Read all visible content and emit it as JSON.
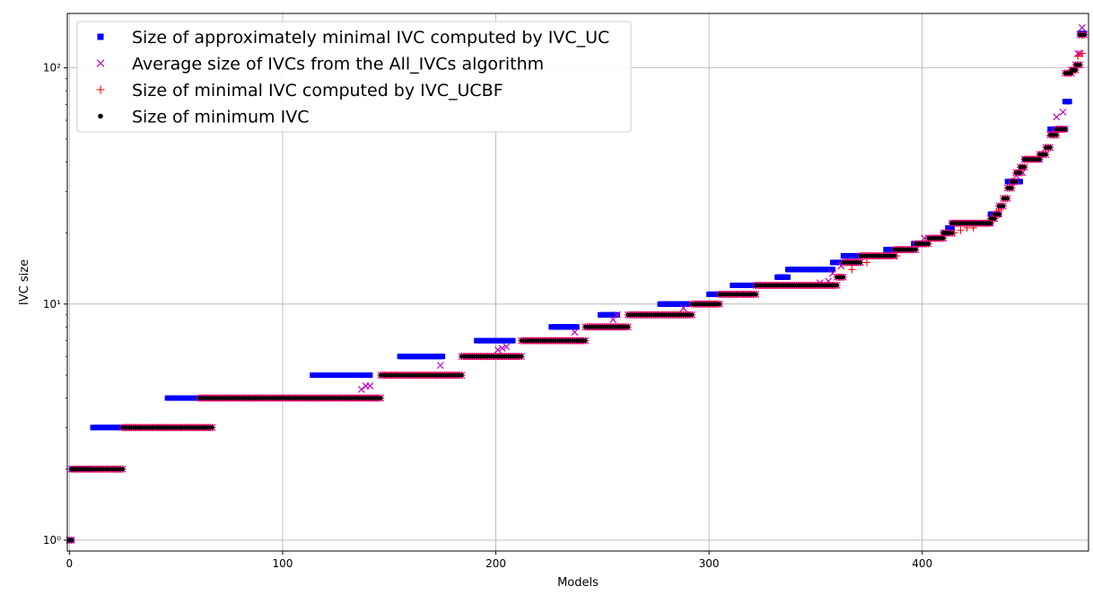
{
  "chart_data": {
    "type": "scatter",
    "title": "",
    "xlabel": "Models",
    "ylabel": "IVC size",
    "xlim": [
      -1,
      478
    ],
    "ylim": [
      0.9,
      170
    ],
    "yscale": "log",
    "grid": true,
    "legend_position": "top-left",
    "x_ticks": [
      0,
      100,
      200,
      300,
      400
    ],
    "x_tick_labels": [
      "0",
      "100",
      "200",
      "300",
      "400"
    ],
    "y_ticks": [
      1,
      10,
      100
    ],
    "y_tick_labels": [
      "10⁰",
      "10¹",
      "10²"
    ],
    "legend": [
      {
        "label": "Size of approximately minimal IVC computed by IVC_UC",
        "marker": "square",
        "color": "#0000ff"
      },
      {
        "label": "Average size of IVCs from the All_IVCs algorithm",
        "marker": "x",
        "color": "#bf00bf"
      },
      {
        "label": "Size of minimal IVC computed by IVC_UCBF",
        "marker": "plus",
        "color": "#ff0000"
      },
      {
        "label": "Size of minimum IVC",
        "marker": "dot",
        "color": "#000000"
      }
    ],
    "minimum_ivc_runs": [
      {
        "x_start": 0,
        "x_end": 1,
        "y": 1
      },
      {
        "x_start": 1,
        "x_end": 25,
        "y": 2
      },
      {
        "x_start": 25,
        "x_end": 67,
        "y": 3
      },
      {
        "x_start": 61,
        "x_end": 146,
        "y": 4
      },
      {
        "x_start": 146,
        "x_end": 184,
        "y": 5
      },
      {
        "x_start": 184,
        "x_end": 212,
        "y": 6
      },
      {
        "x_start": 212,
        "x_end": 242,
        "y": 7
      },
      {
        "x_start": 242,
        "x_end": 262,
        "y": 8
      },
      {
        "x_start": 262,
        "x_end": 292,
        "y": 9
      },
      {
        "x_start": 292,
        "x_end": 305,
        "y": 10
      },
      {
        "x_start": 305,
        "x_end": 322,
        "y": 11
      },
      {
        "x_start": 322,
        "x_end": 360,
        "y": 12
      },
      {
        "x_start": 360,
        "x_end": 363,
        "y": 13
      },
      {
        "x_start": 363,
        "x_end": 371,
        "y": 15
      },
      {
        "x_start": 371,
        "x_end": 387,
        "y": 16
      },
      {
        "x_start": 387,
        "x_end": 397,
        "y": 17
      },
      {
        "x_start": 397,
        "x_end": 403,
        "y": 18
      },
      {
        "x_start": 403,
        "x_end": 410,
        "y": 19
      },
      {
        "x_start": 410,
        "x_end": 414,
        "y": 20
      },
      {
        "x_start": 414,
        "x_end": 432,
        "y": 22
      },
      {
        "x_start": 432,
        "x_end": 434,
        "y": 23
      },
      {
        "x_start": 434,
        "x_end": 436,
        "y": 24
      },
      {
        "x_start": 436,
        "x_end": 438,
        "y": 26
      },
      {
        "x_start": 438,
        "x_end": 440,
        "y": 28
      },
      {
        "x_start": 440,
        "x_end": 442,
        "y": 31
      },
      {
        "x_start": 442,
        "x_end": 444,
        "y": 33
      },
      {
        "x_start": 444,
        "x_end": 446,
        "y": 36
      },
      {
        "x_start": 446,
        "x_end": 448,
        "y": 38
      },
      {
        "x_start": 448,
        "x_end": 455,
        "y": 41
      },
      {
        "x_start": 455,
        "x_end": 458,
        "y": 43
      },
      {
        "x_start": 458,
        "x_end": 460,
        "y": 46
      },
      {
        "x_start": 460,
        "x_end": 463,
        "y": 52
      },
      {
        "x_start": 463,
        "x_end": 467,
        "y": 55
      },
      {
        "x_start": 467,
        "x_end": 470,
        "y": 95
      },
      {
        "x_start": 470,
        "x_end": 472,
        "y": 98
      },
      {
        "x_start": 472,
        "x_end": 474,
        "y": 103
      },
      {
        "x_start": 474,
        "x_end": 476,
        "y": 138
      }
    ],
    "approx_minimal_ivc_runs": [
      {
        "x_start": 0,
        "x_end": 1,
        "y": 1
      },
      {
        "x_start": 1,
        "x_end": 10,
        "y": 2
      },
      {
        "x_start": 11,
        "x_end": 25,
        "y": 3
      },
      {
        "x_start": 46,
        "x_end": 61,
        "y": 4
      },
      {
        "x_start": 114,
        "x_end": 141,
        "y": 5
      },
      {
        "x_start": 155,
        "x_end": 175,
        "y": 6
      },
      {
        "x_start": 191,
        "x_end": 208,
        "y": 7
      },
      {
        "x_start": 226,
        "x_end": 238,
        "y": 8
      },
      {
        "x_start": 249,
        "x_end": 257,
        "y": 9
      },
      {
        "x_start": 277,
        "x_end": 290,
        "y": 10
      },
      {
        "x_start": 300,
        "x_end": 305,
        "y": 11
      },
      {
        "x_start": 311,
        "x_end": 322,
        "y": 12
      },
      {
        "x_start": 332,
        "x_end": 337,
        "y": 13
      },
      {
        "x_start": 337,
        "x_end": 358,
        "y": 14
      },
      {
        "x_start": 358,
        "x_end": 363,
        "y": 15
      },
      {
        "x_start": 363,
        "x_end": 371,
        "y": 16
      },
      {
        "x_start": 383,
        "x_end": 390,
        "y": 17
      },
      {
        "x_start": 396,
        "x_end": 400,
        "y": 18
      },
      {
        "x_start": 410,
        "x_end": 412,
        "y": 20
      },
      {
        "x_start": 412,
        "x_end": 414,
        "y": 21
      },
      {
        "x_start": 414,
        "x_end": 432,
        "y": 22
      },
      {
        "x_start": 432,
        "x_end": 436,
        "y": 24
      },
      {
        "x_start": 440,
        "x_end": 446,
        "y": 33
      },
      {
        "x_start": 448,
        "x_end": 455,
        "y": 41
      },
      {
        "x_start": 460,
        "x_end": 467,
        "y": 55
      },
      {
        "x_start": 467,
        "x_end": 469,
        "y": 72
      },
      {
        "x_start": 474,
        "x_end": 476,
        "y": 140
      }
    ],
    "avg_all_ivcs_points": [
      {
        "x": 137,
        "y": 4.35
      },
      {
        "x": 139,
        "y": 4.5
      },
      {
        "x": 141,
        "y": 4.5
      },
      {
        "x": 174,
        "y": 5.5
      },
      {
        "x": 201,
        "y": 6.4
      },
      {
        "x": 203,
        "y": 6.5
      },
      {
        "x": 205,
        "y": 6.6
      },
      {
        "x": 237,
        "y": 7.6
      },
      {
        "x": 255,
        "y": 8.6
      },
      {
        "x": 257,
        "y": 9
      },
      {
        "x": 288,
        "y": 9.6
      },
      {
        "x": 352,
        "y": 12.3
      },
      {
        "x": 356,
        "y": 12.5
      },
      {
        "x": 358,
        "y": 13.5
      },
      {
        "x": 362,
        "y": 14.5
      },
      {
        "x": 401,
        "y": 19
      },
      {
        "x": 444,
        "y": 35
      },
      {
        "x": 447,
        "y": 36
      },
      {
        "x": 460,
        "y": 53
      },
      {
        "x": 463,
        "y": 62
      },
      {
        "x": 466,
        "y": 65
      },
      {
        "x": 468,
        "y": 95
      },
      {
        "x": 471,
        "y": 98
      },
      {
        "x": 472,
        "y": 103
      },
      {
        "x": 473,
        "y": 115
      },
      {
        "x": 474,
        "y": 115
      },
      {
        "x": 475,
        "y": 148
      }
    ],
    "minimal_ivc_ucbf_points": [
      {
        "x": 367,
        "y": 14
      },
      {
        "x": 370,
        "y": 15
      },
      {
        "x": 374,
        "y": 15
      },
      {
        "x": 388,
        "y": 16
      },
      {
        "x": 415,
        "y": 20
      },
      {
        "x": 418,
        "y": 20.5
      },
      {
        "x": 421,
        "y": 21
      },
      {
        "x": 424,
        "y": 21
      },
      {
        "x": 429,
        "y": 22
      },
      {
        "x": 436,
        "y": 25
      },
      {
        "x": 470,
        "y": 96
      },
      {
        "x": 473,
        "y": 112
      },
      {
        "x": 475,
        "y": 115
      }
    ]
  }
}
